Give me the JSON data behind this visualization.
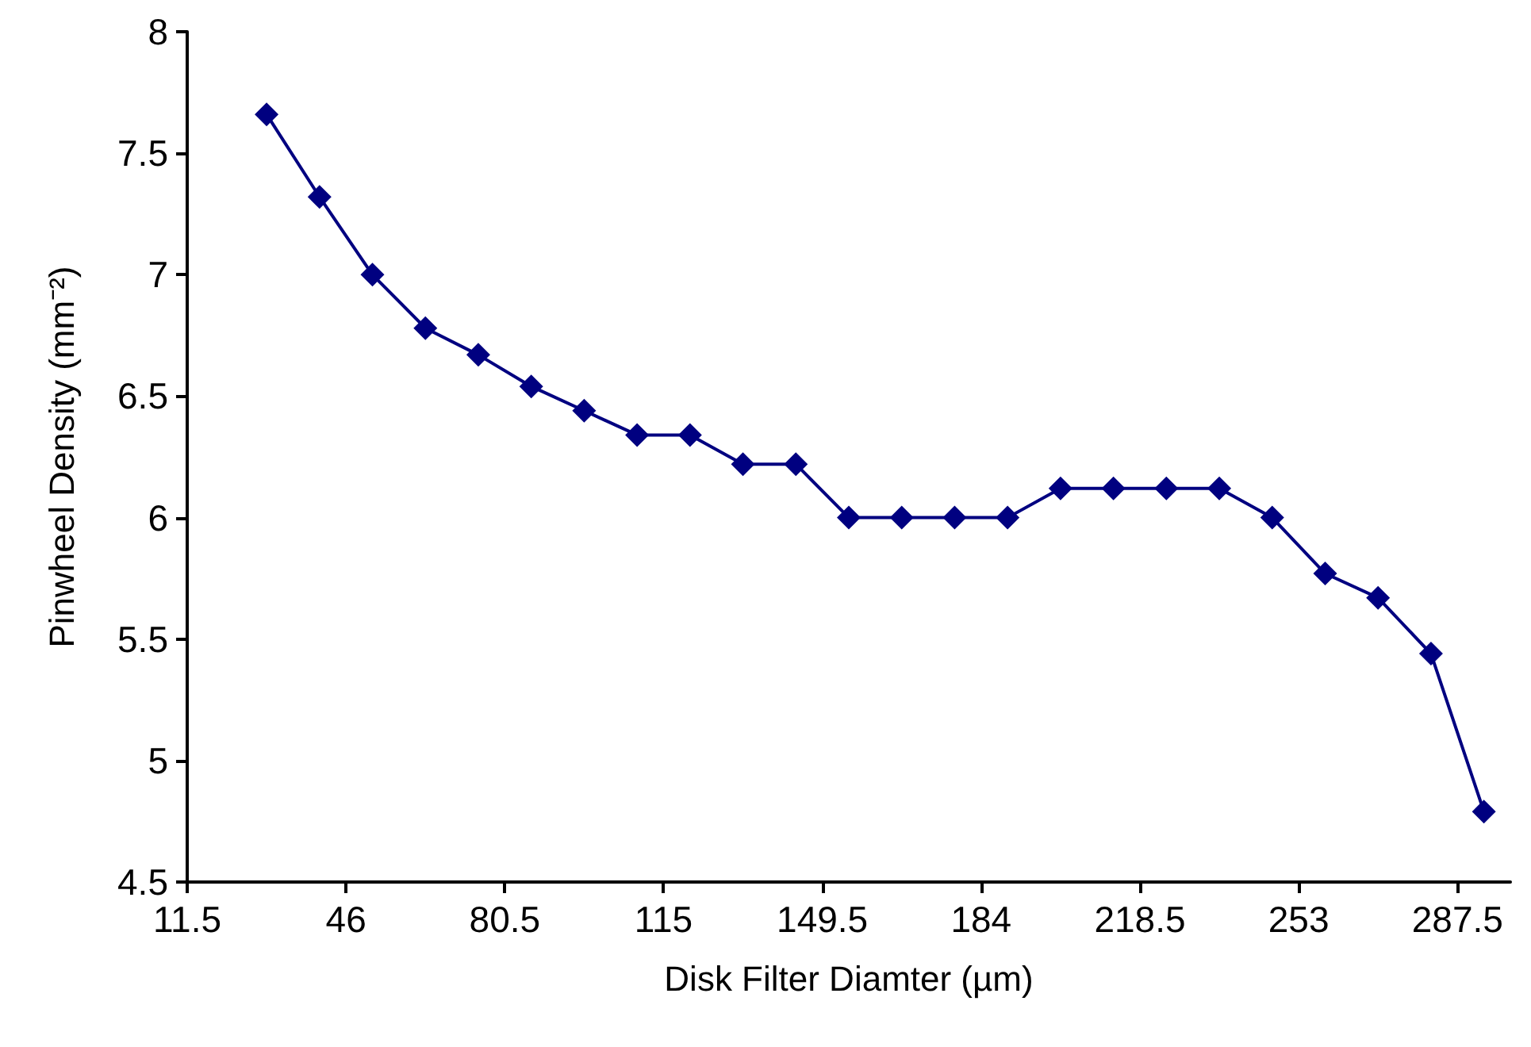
{
  "chart_data": {
    "type": "line",
    "xlabel": "Disk Filter Diamter (µm)",
    "ylabel": "Pinwheel Density (mm⁻²)",
    "x": [
      28.75,
      40.25,
      51.75,
      63.25,
      74.75,
      86.25,
      97.75,
      109.25,
      120.75,
      132.25,
      143.75,
      155.25,
      166.75,
      178.25,
      189.75,
      201.25,
      212.75,
      224.25,
      235.75,
      247.25,
      258.75,
      270.25,
      281.75,
      293.25
    ],
    "series": [
      {
        "color": "#000080",
        "values": [
          7.66,
          7.32,
          7.0,
          6.78,
          6.67,
          6.54,
          6.44,
          6.34,
          6.34,
          6.22,
          6.22,
          6.0,
          6.0,
          6.0,
          6.0,
          6.12,
          6.12,
          6.12,
          6.12,
          6.0,
          5.77,
          5.67,
          5.44,
          4.79
        ]
      }
    ],
    "xlim": [
      11.5,
      299
    ],
    "xticks": [
      11.5,
      46,
      80.5,
      115,
      149.5,
      184,
      218.5,
      253,
      287.5
    ],
    "ylim": [
      4.5,
      8
    ],
    "yticks": [
      4.5,
      5,
      5.5,
      6,
      6.5,
      7,
      7.5,
      8
    ],
    "grid": false,
    "marker": "diamond",
    "line_style": "solid"
  }
}
